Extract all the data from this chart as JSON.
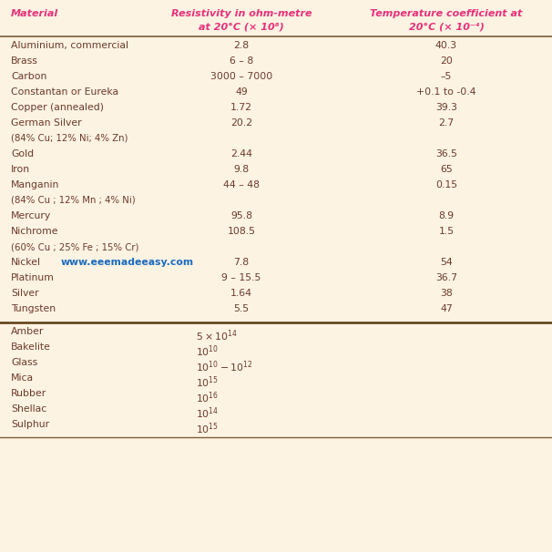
{
  "bg_color": "#fdf3e3",
  "header_color": "#e8317a",
  "text_color": "#6b3a2a",
  "watermark_color": "#1a6bbf",
  "col_headers_line1": [
    "Material",
    "Resistivity in ohm-metre",
    "Temperature coefficient at"
  ],
  "col_headers_line2": [
    "",
    "at 20°C (× 10⁸)",
    "20°C (× 10⁻⁴)"
  ],
  "conductor_rows": [
    [
      "Aluminium, commercial",
      "2.8",
      "40.3"
    ],
    [
      "Brass",
      "6 – 8",
      "20"
    ],
    [
      "Carbon",
      "3000 – 7000",
      "–5"
    ],
    [
      "Constantan or Eureka",
      "49",
      "+0.1 to -0.4"
    ],
    [
      "Copper (annealed)",
      "1.72",
      "39.3"
    ],
    [
      "German Silver",
      "20.2",
      "2.7"
    ],
    [
      "(84% Cu; 12% Ni; 4% Zn)",
      "",
      ""
    ],
    [
      "Gold",
      "2.44",
      "36.5"
    ],
    [
      "Iron",
      "9.8",
      "65"
    ],
    [
      "Manganin",
      "44 – 48",
      "0.15"
    ],
    [
      "(84% Cu ; 12% Mn ; 4% Ni)",
      "",
      ""
    ],
    [
      "Mercury",
      "95.8",
      "8.9"
    ],
    [
      "Nichrome",
      "108.5",
      "1.5"
    ],
    [
      "(60% Cu ; 25% Fe ; 15% Cr)",
      "",
      ""
    ],
    [
      "Nickel",
      "7.8",
      "54"
    ],
    [
      "Platinum",
      "9 – 15.5",
      "36.7"
    ],
    [
      "Silver",
      "1.64",
      "38"
    ],
    [
      "Tungsten",
      "5.5",
      "47"
    ]
  ],
  "insulator_rows": [
    [
      "Amber",
      "$5 \\times 10^{14}$"
    ],
    [
      "Bakelite",
      "$10^{10}$"
    ],
    [
      "Glass",
      "$10^{10} - 10^{12}$"
    ],
    [
      "Mica",
      "$10^{15}$"
    ],
    [
      "Rubber",
      "$10^{16}$"
    ],
    [
      "Shellac",
      "$10^{14}$"
    ],
    [
      "Sulphur",
      "$10^{15}$"
    ]
  ],
  "watermark": "www.eeemadeeasy.com",
  "fig_width": 6.06,
  "fig_height": 6.06,
  "dpi": 100
}
